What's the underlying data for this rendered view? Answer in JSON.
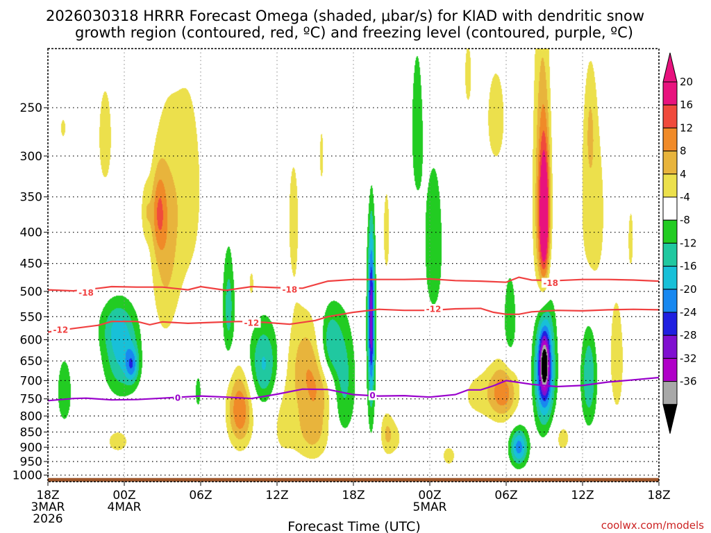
{
  "chart_data": {
    "type": "heatmap",
    "title_lines": [
      "2026030318 HRRR Forecast Omega (shaded, μbar/s) for KIAD with dendritic snow",
      "growth region (contoured, red, ºC) and freezing level (contoured, purple, ºC)"
    ],
    "xlabel": "Forecast Time (UTC)",
    "credit": "coolwx.com/models",
    "x_range_hours": [
      0,
      48
    ],
    "x_ticks": [
      {
        "hour": 0,
        "lines": [
          "18Z",
          "3MAR",
          "2026"
        ]
      },
      {
        "hour": 6,
        "lines": [
          "00Z",
          "4MAR"
        ]
      },
      {
        "hour": 12,
        "lines": [
          "06Z"
        ]
      },
      {
        "hour": 18,
        "lines": [
          "12Z"
        ]
      },
      {
        "hour": 24,
        "lines": [
          "18Z"
        ]
      },
      {
        "hour": 30,
        "lines": [
          "00Z",
          "5MAR"
        ]
      },
      {
        "hour": 36,
        "lines": [
          "06Z"
        ]
      },
      {
        "hour": 42,
        "lines": [
          "12Z"
        ]
      },
      {
        "hour": 48,
        "lines": [
          "18Z"
        ]
      }
    ],
    "y_range_hpa": [
      1025,
      200
    ],
    "y_ticks": [
      "250",
      "300",
      "350",
      "400",
      "450",
      "500",
      "550",
      "600",
      "650",
      "700",
      "750",
      "800",
      "850",
      "900",
      "950",
      "1000"
    ],
    "colorbar": {
      "tick_labels": [
        "20",
        "16",
        "12",
        "8",
        "4",
        "-4",
        "-8",
        "-12",
        "-16",
        "-20",
        "-24",
        "-28",
        "-32",
        "-36"
      ],
      "bins": [
        {
          "lo": 20,
          "hi": 24,
          "color": "#e8127e"
        },
        {
          "lo": 16,
          "hi": 20,
          "color": "#f04a3c"
        },
        {
          "lo": 12,
          "hi": 16,
          "color": "#f08a28"
        },
        {
          "lo": 8,
          "hi": 12,
          "color": "#e8b43c"
        },
        {
          "lo": 4,
          "hi": 8,
          "color": "#ece04c"
        },
        {
          "lo": -4,
          "hi": 4,
          "color": "#ffffff"
        },
        {
          "lo": -8,
          "hi": -4,
          "color": "#22cc22"
        },
        {
          "lo": -12,
          "hi": -8,
          "color": "#20c8a0"
        },
        {
          "lo": -16,
          "hi": -12,
          "color": "#18c0d8"
        },
        {
          "lo": -20,
          "hi": -16,
          "color": "#1888f0"
        },
        {
          "lo": -24,
          "hi": -20,
          "color": "#2020e0"
        },
        {
          "lo": -28,
          "hi": -24,
          "color": "#8010d0"
        },
        {
          "lo": -32,
          "hi": -28,
          "color": "#b000c8"
        },
        {
          "lo": -36,
          "hi": -32,
          "color": "#a8a8a8"
        }
      ],
      "top_arrow_color": "#e8127e",
      "bottom_arrow_color": "#000000"
    },
    "omega_blobs": [
      {
        "hour": 1.3,
        "hpa": 730,
        "sx": 0.5,
        "sy": 80,
        "amp": -6.5
      },
      {
        "hour": 1.2,
        "hpa": 270,
        "sx": 0.25,
        "sy": 12,
        "amp": 5
      },
      {
        "hour": 5.8,
        "hpa": 640,
        "sx": 1.0,
        "sy": 70,
        "amp": -12
      },
      {
        "hour": 5.4,
        "hpa": 570,
        "sx": 1.0,
        "sy": 40,
        "amp": -7
      },
      {
        "hour": 6.6,
        "hpa": 660,
        "sx": 0.35,
        "sy": 30,
        "amp": -12
      },
      {
        "hour": 4.5,
        "hpa": 280,
        "sx": 0.5,
        "sy": 50,
        "amp": 6
      },
      {
        "hour": 5.5,
        "hpa": 880,
        "sx": 1.0,
        "sy": 45,
        "amp": 5
      },
      {
        "hour": 9.2,
        "hpa": 420,
        "sx": 0.8,
        "sy": 120,
        "amp": 9
      },
      {
        "hour": 8.7,
        "hpa": 370,
        "sx": 0.4,
        "sy": 40,
        "amp": 10
      },
      {
        "hour": 11.0,
        "hpa": 340,
        "sx": 1.0,
        "sy": 110,
        "amp": 6
      },
      {
        "hour": 7.7,
        "hpa": 370,
        "sx": 0.3,
        "sy": 30,
        "amp": 6
      },
      {
        "hour": 11.8,
        "hpa": 730,
        "sx": 0.2,
        "sy": 40,
        "amp": -6
      },
      {
        "hour": 15.1,
        "hpa": 780,
        "sx": 0.7,
        "sy": 80,
        "amp": 16
      },
      {
        "hour": 14.2,
        "hpa": 530,
        "sx": 0.35,
        "sy": 80,
        "amp": -10
      },
      {
        "hour": 14.9,
        "hpa": 430,
        "sx": 0.2,
        "sy": 30,
        "amp": 4.5
      },
      {
        "hour": 16.0,
        "hpa": 490,
        "sx": 0.3,
        "sy": 40,
        "amp": 5
      },
      {
        "hour": 17.0,
        "hpa": 660,
        "sx": 0.9,
        "sy": 75,
        "amp": -13
      },
      {
        "hour": 18.4,
        "hpa": 800,
        "sx": 0.8,
        "sy": 120,
        "amp": 5
      },
      {
        "hour": 19.3,
        "hpa": 380,
        "sx": 0.5,
        "sy": 100,
        "amp": 5
      },
      {
        "hour": 21.5,
        "hpa": 300,
        "sx": 0.25,
        "sy": 50,
        "amp": 4.5
      },
      {
        "hour": 20.3,
        "hpa": 660,
        "sx": 1.0,
        "sy": 90,
        "amp": 10
      },
      {
        "hour": 20.8,
        "hpa": 850,
        "sx": 1.0,
        "sy": 70,
        "amp": 9
      },
      {
        "hour": 21.6,
        "hpa": 720,
        "sx": 0.9,
        "sy": 60,
        "amp": 6
      },
      {
        "hour": 22.1,
        "hpa": 610,
        "sx": 0.6,
        "sy": 60,
        "amp": -11
      },
      {
        "hour": 23.2,
        "hpa": 700,
        "sx": 0.7,
        "sy": 110,
        "amp": -10
      },
      {
        "hour": 25.3,
        "hpa": 300,
        "sx": 0.35,
        "sy": 60,
        "amp": 5
      },
      {
        "hour": 25.4,
        "hpa": 550,
        "sx": 0.25,
        "sy": 200,
        "amp": -12
      },
      {
        "hour": 25.4,
        "hpa": 560,
        "sx": 0.15,
        "sy": 100,
        "amp": -16
      },
      {
        "hour": 26.6,
        "hpa": 400,
        "sx": 0.3,
        "sy": 80,
        "amp": 5
      },
      {
        "hour": 26.6,
        "hpa": 850,
        "sx": 0.35,
        "sy": 50,
        "amp": 6
      },
      {
        "hour": 27.2,
        "hpa": 870,
        "sx": 0.6,
        "sy": 50,
        "amp": 5
      },
      {
        "hour": 29.0,
        "hpa": 270,
        "sx": 0.35,
        "sy": 60,
        "amp": -7
      },
      {
        "hour": 30.3,
        "hpa": 420,
        "sx": 0.6,
        "sy": 100,
        "amp": -7
      },
      {
        "hour": 31.5,
        "hpa": 930,
        "sx": 0.6,
        "sy": 40,
        "amp": 5
      },
      {
        "hour": 33.8,
        "hpa": 740,
        "sx": 1.2,
        "sy": 60,
        "amp": 5
      },
      {
        "hour": 35.8,
        "hpa": 730,
        "sx": 0.8,
        "sy": 55,
        "amp": 14
      },
      {
        "hour": 33.0,
        "hpa": 220,
        "sx": 0.3,
        "sy": 30,
        "amp": 5
      },
      {
        "hour": 35.2,
        "hpa": 260,
        "sx": 0.9,
        "sy": 60,
        "amp": 5
      },
      {
        "hour": 36.3,
        "hpa": 560,
        "sx": 0.4,
        "sy": 80,
        "amp": -7
      },
      {
        "hour": 37.0,
        "hpa": 900,
        "sx": 0.5,
        "sy": 45,
        "amp": -18
      },
      {
        "hour": 38.8,
        "hpa": 380,
        "sx": 0.5,
        "sy": 170,
        "amp": 12
      },
      {
        "hour": 39.0,
        "hpa": 380,
        "sx": 0.28,
        "sy": 70,
        "amp": 22
      },
      {
        "hour": 39.0,
        "hpa": 660,
        "sx": 0.55,
        "sy": 110,
        "amp": -28
      },
      {
        "hour": 39.0,
        "hpa": 660,
        "sx": 0.25,
        "sy": 45,
        "amp": -20
      },
      {
        "hour": 40.4,
        "hpa": 870,
        "sx": 0.7,
        "sy": 50,
        "amp": 5
      },
      {
        "hour": 42.5,
        "hpa": 690,
        "sx": 0.45,
        "sy": 95,
        "amp": -12
      },
      {
        "hour": 42.8,
        "hpa": 370,
        "sx": 0.9,
        "sy": 120,
        "amp": 6
      },
      {
        "hour": 44.7,
        "hpa": 650,
        "sx": 0.5,
        "sy": 130,
        "amp": 6
      },
      {
        "hour": 45.8,
        "hpa": 410,
        "sx": 0.3,
        "sy": 70,
        "amp": 4.5
      },
      {
        "hour": 42.6,
        "hpa": 270,
        "sx": 0.3,
        "sy": 40,
        "amp": 5
      }
    ],
    "contours": [
      {
        "name": "dgz-minus-18",
        "color": "#f04040",
        "label": "-18",
        "label_positions": [
          [
            3.0,
            502
          ],
          [
            19.0,
            496
          ],
          [
            39.5,
            484
          ]
        ],
        "points": [
          [
            0,
            497
          ],
          [
            2,
            499
          ],
          [
            4,
            494
          ],
          [
            5,
            491
          ],
          [
            7,
            492
          ],
          [
            9,
            492
          ],
          [
            11,
            497
          ],
          [
            12,
            491
          ],
          [
            14,
            498
          ],
          [
            16,
            491
          ],
          [
            18,
            493
          ],
          [
            20,
            494
          ],
          [
            22,
            481
          ],
          [
            24,
            478
          ],
          [
            26,
            478
          ],
          [
            28,
            478
          ],
          [
            30,
            477
          ],
          [
            32,
            480
          ],
          [
            34,
            481
          ],
          [
            36,
            483
          ],
          [
            37,
            474
          ],
          [
            38,
            479
          ],
          [
            40,
            480
          ],
          [
            42,
            478
          ],
          [
            44,
            478
          ],
          [
            46,
            479
          ],
          [
            48,
            481
          ]
        ]
      },
      {
        "name": "dgz-minus-12",
        "color": "#f04040",
        "label": "-12",
        "label_positions": [
          [
            1.0,
            578
          ],
          [
            16.0,
            563
          ],
          [
            30.3,
            534
          ]
        ],
        "points": [
          [
            0,
            583
          ],
          [
            2,
            575
          ],
          [
            4,
            568
          ],
          [
            5,
            560
          ],
          [
            7,
            560
          ],
          [
            8,
            567
          ],
          [
            9,
            561
          ],
          [
            11,
            564
          ],
          [
            13,
            562
          ],
          [
            15,
            560
          ],
          [
            17,
            562
          ],
          [
            19,
            566
          ],
          [
            21,
            558
          ],
          [
            22,
            550
          ],
          [
            24,
            541
          ],
          [
            26,
            535
          ],
          [
            28,
            537
          ],
          [
            30,
            537
          ],
          [
            32,
            534
          ],
          [
            34,
            533
          ],
          [
            35,
            541
          ],
          [
            36,
            545
          ],
          [
            37,
            545
          ],
          [
            38,
            540
          ],
          [
            40,
            537
          ],
          [
            42,
            538
          ],
          [
            44,
            536
          ],
          [
            46,
            535
          ],
          [
            48,
            536
          ]
        ]
      },
      {
        "name": "freezing-level-0",
        "color": "#9900cc",
        "label": "0",
        "label_positions": [
          [
            10.2,
            747
          ],
          [
            25.5,
            740
          ]
        ],
        "points": [
          [
            0,
            755
          ],
          [
            2,
            749
          ],
          [
            3,
            748
          ],
          [
            5,
            753
          ],
          [
            7,
            752
          ],
          [
            9,
            748
          ],
          [
            12,
            742
          ],
          [
            14,
            745
          ],
          [
            16,
            749
          ],
          [
            18,
            737
          ],
          [
            20,
            723
          ],
          [
            22,
            724
          ],
          [
            24,
            738
          ],
          [
            26,
            742
          ],
          [
            28,
            741
          ],
          [
            30,
            745
          ],
          [
            32,
            738
          ],
          [
            33,
            725
          ],
          [
            34,
            725
          ],
          [
            35,
            714
          ],
          [
            36,
            700
          ],
          [
            38,
            710
          ],
          [
            40,
            716
          ],
          [
            42,
            713
          ],
          [
            44,
            704
          ],
          [
            46,
            698
          ],
          [
            48,
            692
          ]
        ]
      }
    ],
    "ground_pressure_hpa": 1011
  }
}
